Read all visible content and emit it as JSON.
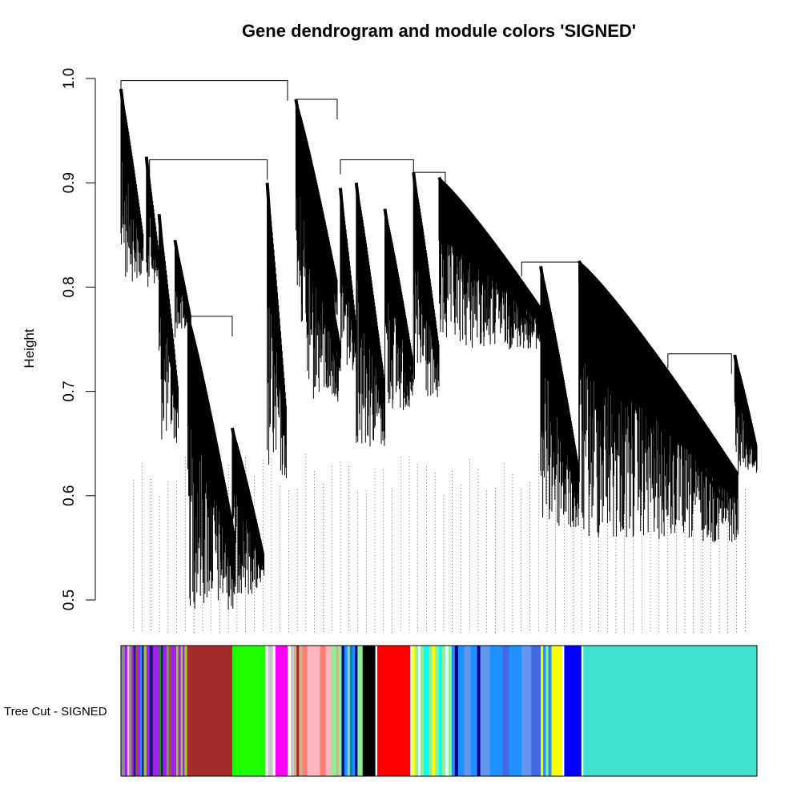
{
  "chart_data": {
    "type": "dendrogram",
    "title": "Gene dendrogram and module colors 'SIGNED'",
    "ylabel": "Height",
    "xlabel": "",
    "ylim": [
      0.5,
      1.0
    ],
    "yticks": [
      0.5,
      0.6,
      0.7,
      0.8,
      0.9,
      1.0
    ],
    "ytick_labels": [
      "0.5",
      "0.6",
      "0.7",
      "0.8",
      "0.9",
      "1.0"
    ],
    "color_band_label": "Tree Cut - SIGNED",
    "top_merges": [
      {
        "height": 0.998,
        "from": 0.0,
        "to": 0.262
      },
      {
        "height": 0.922,
        "from": 0.045,
        "to": 0.23
      },
      {
        "height": 0.772,
        "from": 0.105,
        "to": 0.175
      },
      {
        "height": 0.98,
        "from": 0.275,
        "to": 0.34
      },
      {
        "height": 0.922,
        "from": 0.345,
        "to": 0.46
      },
      {
        "height": 0.91,
        "from": 0.46,
        "to": 0.51
      },
      {
        "height": 0.824,
        "from": 0.63,
        "to": 0.72
      },
      {
        "height": 0.736,
        "from": 0.86,
        "to": 0.96
      }
    ],
    "clusters": [
      {
        "x0": 0.0,
        "x1": 0.035,
        "top": 0.99,
        "bottom": 0.805
      },
      {
        "x0": 0.04,
        "x1": 0.06,
        "top": 0.925,
        "bottom": 0.8
      },
      {
        "x0": 0.06,
        "x1": 0.09,
        "top": 0.87,
        "bottom": 0.65
      },
      {
        "x0": 0.085,
        "x1": 0.11,
        "top": 0.845,
        "bottom": 0.75
      },
      {
        "x0": 0.105,
        "x1": 0.18,
        "top": 0.775,
        "bottom": 0.49
      },
      {
        "x0": 0.175,
        "x1": 0.225,
        "top": 0.665,
        "bottom": 0.505
      },
      {
        "x0": 0.23,
        "x1": 0.26,
        "top": 0.9,
        "bottom": 0.615
      },
      {
        "x0": 0.275,
        "x1": 0.34,
        "top": 0.98,
        "bottom": 0.75
      },
      {
        "x0": 0.29,
        "x1": 0.345,
        "top": 0.915,
        "bottom": 0.69
      },
      {
        "x0": 0.345,
        "x1": 0.37,
        "top": 0.895,
        "bottom": 0.72
      },
      {
        "x0": 0.37,
        "x1": 0.415,
        "top": 0.9,
        "bottom": 0.645
      },
      {
        "x0": 0.415,
        "x1": 0.46,
        "top": 0.875,
        "bottom": 0.68
      },
      {
        "x0": 0.46,
        "x1": 0.5,
        "top": 0.91,
        "bottom": 0.69
      },
      {
        "x0": 0.5,
        "x1": 0.66,
        "top": 0.905,
        "bottom": 0.74
      },
      {
        "x0": 0.66,
        "x1": 0.72,
        "top": 0.82,
        "bottom": 0.565
      },
      {
        "x0": 0.72,
        "x1": 0.97,
        "top": 0.825,
        "bottom": 0.555
      },
      {
        "x0": 0.965,
        "x1": 1.0,
        "top": 0.735,
        "bottom": 0.62
      }
    ],
    "module_colors": [
      {
        "color": "#8c8c8c",
        "from": 0.0,
        "to": 0.006
      },
      {
        "color": "#a020f0",
        "from": 0.006,
        "to": 0.01
      },
      {
        "color": "#ffc0cb",
        "from": 0.01,
        "to": 0.013
      },
      {
        "color": "#8c8c8c",
        "from": 0.013,
        "to": 0.017
      },
      {
        "color": "#a020f0",
        "from": 0.017,
        "to": 0.02
      },
      {
        "color": "#191970",
        "from": 0.02,
        "to": 0.023
      },
      {
        "color": "#a0522d",
        "from": 0.023,
        "to": 0.026
      },
      {
        "color": "#a020f0",
        "from": 0.026,
        "to": 0.03
      },
      {
        "color": "#1e90ff",
        "from": 0.03,
        "to": 0.033
      },
      {
        "color": "#191970",
        "from": 0.033,
        "to": 0.036
      },
      {
        "color": "#9acd32",
        "from": 0.036,
        "to": 0.04
      },
      {
        "color": "#a020f0",
        "from": 0.04,
        "to": 0.045
      },
      {
        "color": "#191970",
        "from": 0.045,
        "to": 0.05
      },
      {
        "color": "#a020f0",
        "from": 0.05,
        "to": 0.06
      },
      {
        "color": "#228b22",
        "from": 0.06,
        "to": 0.063
      },
      {
        "color": "#191970",
        "from": 0.063,
        "to": 0.066
      },
      {
        "color": "#a020f0",
        "from": 0.066,
        "to": 0.072
      },
      {
        "color": "#8c8c8c",
        "from": 0.072,
        "to": 0.075
      },
      {
        "color": "#a0522d",
        "from": 0.075,
        "to": 0.079
      },
      {
        "color": "#a020f0",
        "from": 0.079,
        "to": 0.087
      },
      {
        "color": "#9acd32",
        "from": 0.087,
        "to": 0.09
      },
      {
        "color": "#a020f0",
        "from": 0.09,
        "to": 0.094
      },
      {
        "color": "#9acd32",
        "from": 0.094,
        "to": 0.097
      },
      {
        "color": "#a020f0",
        "from": 0.097,
        "to": 0.1
      },
      {
        "color": "#9acd32",
        "from": 0.1,
        "to": 0.104
      },
      {
        "color": "#a52a2a",
        "from": 0.104,
        "to": 0.175
      },
      {
        "color": "#1eff00",
        "from": 0.175,
        "to": 0.227
      },
      {
        "color": "#ffffff",
        "from": 0.227,
        "to": 0.231
      },
      {
        "color": "#c8c8c8",
        "from": 0.231,
        "to": 0.239
      },
      {
        "color": "#ffffff",
        "from": 0.239,
        "to": 0.243
      },
      {
        "color": "#ff00ff",
        "from": 0.243,
        "to": 0.262
      },
      {
        "color": "#ffffff",
        "from": 0.262,
        "to": 0.267
      },
      {
        "color": "#c8c8c8",
        "from": 0.267,
        "to": 0.272
      },
      {
        "color": "#d2b48c",
        "from": 0.272,
        "to": 0.276
      },
      {
        "color": "#a52a2a",
        "from": 0.276,
        "to": 0.28
      },
      {
        "color": "#d2b48c",
        "from": 0.28,
        "to": 0.285
      },
      {
        "color": "#fa8072",
        "from": 0.285,
        "to": 0.293
      },
      {
        "color": "#ffb6c1",
        "from": 0.293,
        "to": 0.313
      },
      {
        "color": "#fa8072",
        "from": 0.313,
        "to": 0.322
      },
      {
        "color": "#ffb6c1",
        "from": 0.322,
        "to": 0.33
      },
      {
        "color": "#90ee90",
        "from": 0.33,
        "to": 0.338
      },
      {
        "color": "#d2b48c",
        "from": 0.338,
        "to": 0.342
      },
      {
        "color": "#90ee90",
        "from": 0.342,
        "to": 0.347
      },
      {
        "color": "#00008b",
        "from": 0.347,
        "to": 0.351
      },
      {
        "color": "#1e90ff",
        "from": 0.351,
        "to": 0.356
      },
      {
        "color": "#87ceeb",
        "from": 0.356,
        "to": 0.36
      },
      {
        "color": "#008b8b",
        "from": 0.36,
        "to": 0.364
      },
      {
        "color": "#1e90ff",
        "from": 0.364,
        "to": 0.368
      },
      {
        "color": "#00008b",
        "from": 0.368,
        "to": 0.372
      },
      {
        "color": "#90ee90",
        "from": 0.372,
        "to": 0.38
      },
      {
        "color": "#000000",
        "from": 0.38,
        "to": 0.4
      },
      {
        "color": "#ffffff",
        "from": 0.4,
        "to": 0.403
      },
      {
        "color": "#ff0000",
        "from": 0.403,
        "to": 0.455
      },
      {
        "color": "#ffffff",
        "from": 0.455,
        "to": 0.458
      },
      {
        "color": "#ffff00",
        "from": 0.458,
        "to": 0.463
      },
      {
        "color": "#90ee90",
        "from": 0.463,
        "to": 0.467
      },
      {
        "color": "#e0ffff",
        "from": 0.467,
        "to": 0.471
      },
      {
        "color": "#90ee90",
        "from": 0.471,
        "to": 0.476
      },
      {
        "color": "#00ffff",
        "from": 0.476,
        "to": 0.484
      },
      {
        "color": "#90ee90",
        "from": 0.484,
        "to": 0.489
      },
      {
        "color": "#ffff00",
        "from": 0.489,
        "to": 0.494
      },
      {
        "color": "#90ee90",
        "from": 0.494,
        "to": 0.5
      },
      {
        "color": "#00ffff",
        "from": 0.5,
        "to": 0.505
      },
      {
        "color": "#90ee90",
        "from": 0.505,
        "to": 0.51
      },
      {
        "color": "#e0ffff",
        "from": 0.51,
        "to": 0.515
      },
      {
        "color": "#90ee90",
        "from": 0.515,
        "to": 0.52
      },
      {
        "color": "#1e90ff",
        "from": 0.52,
        "to": 0.525
      },
      {
        "color": "#00008b",
        "from": 0.525,
        "to": 0.53
      },
      {
        "color": "#1e90ff",
        "from": 0.53,
        "to": 0.54
      },
      {
        "color": "#6495ed",
        "from": 0.54,
        "to": 0.55
      },
      {
        "color": "#1e90ff",
        "from": 0.55,
        "to": 0.56
      },
      {
        "color": "#00008b",
        "from": 0.56,
        "to": 0.565
      },
      {
        "color": "#6495ed",
        "from": 0.565,
        "to": 0.58
      },
      {
        "color": "#1e90ff",
        "from": 0.58,
        "to": 0.6
      },
      {
        "color": "#4169e1",
        "from": 0.6,
        "to": 0.61
      },
      {
        "color": "#1e90ff",
        "from": 0.61,
        "to": 0.63
      },
      {
        "color": "#6495ed",
        "from": 0.63,
        "to": 0.645
      },
      {
        "color": "#4169e1",
        "from": 0.645,
        "to": 0.66
      },
      {
        "color": "#ffff00",
        "from": 0.66,
        "to": 0.664
      },
      {
        "color": "#1e90ff",
        "from": 0.664,
        "to": 0.668
      },
      {
        "color": "#90ee90",
        "from": 0.668,
        "to": 0.672
      },
      {
        "color": "#1e90ff",
        "from": 0.672,
        "to": 0.677
      },
      {
        "color": "#ffff00",
        "from": 0.677,
        "to": 0.694
      },
      {
        "color": "#ffffff",
        "from": 0.694,
        "to": 0.697
      },
      {
        "color": "#0000ff",
        "from": 0.697,
        "to": 0.724
      },
      {
        "color": "#ffffff",
        "from": 0.724,
        "to": 0.727
      },
      {
        "color": "#40e0d0",
        "from": 0.727,
        "to": 1.0
      }
    ]
  }
}
